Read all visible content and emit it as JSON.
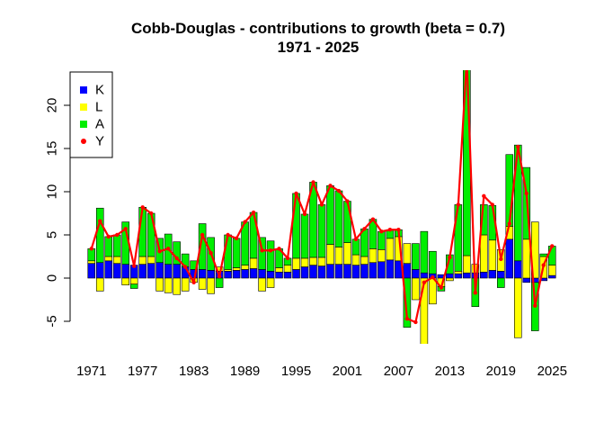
{
  "chart_data": {
    "type": "bar",
    "title": "Cobb-Douglas - contributions to growth (beta = 0.7)",
    "subtitle": "1971 - 2025",
    "xlabel": "",
    "ylabel": "",
    "years": [
      1971,
      1972,
      1973,
      1974,
      1975,
      1976,
      1977,
      1978,
      1979,
      1980,
      1981,
      1982,
      1983,
      1984,
      1985,
      1986,
      1987,
      1988,
      1989,
      1990,
      1991,
      1992,
      1993,
      1994,
      1995,
      1996,
      1997,
      1998,
      1999,
      2000,
      2001,
      2002,
      2003,
      2004,
      2005,
      2006,
      2007,
      2008,
      2009,
      2010,
      2011,
      2012,
      2013,
      2014,
      2015,
      2016,
      2017,
      2018,
      2019,
      2020,
      2021,
      2022,
      2023,
      2024,
      2025
    ],
    "x_tick_labels": [
      "1971",
      "1977",
      "1983",
      "1989",
      "1995",
      "2001",
      "2007",
      "2013",
      "2019",
      "2025"
    ],
    "y_ticks": [
      -5,
      0,
      5,
      10,
      15,
      20
    ],
    "ylim": [
      -8,
      24
    ],
    "stacked": true,
    "series": [
      {
        "name": "K",
        "color": "#0000ff",
        "values": [
          1.7,
          1.8,
          2.0,
          1.7,
          1.6,
          1.5,
          1.6,
          1.7,
          1.8,
          1.6,
          1.6,
          1.3,
          1.0,
          1.0,
          0.9,
          0.8,
          0.8,
          0.9,
          1.0,
          1.1,
          1.0,
          0.8,
          0.7,
          0.7,
          1.0,
          1.3,
          1.5,
          1.4,
          1.6,
          1.6,
          1.6,
          1.5,
          1.6,
          1.8,
          1.9,
          2.1,
          2.0,
          1.7,
          1.0,
          0.6,
          0.5,
          0.4,
          0.5,
          0.5,
          0.6,
          0.6,
          0.7,
          0.9,
          0.8,
          4.5,
          2.0,
          -0.5,
          -0.5,
          -0.3,
          0.3
        ]
      },
      {
        "name": "L",
        "color": "#ffff00",
        "values": [
          0.3,
          -1.5,
          0.5,
          0.8,
          -0.8,
          -0.7,
          0.9,
          0.8,
          -1.5,
          -1.7,
          -1.9,
          -1.5,
          -0.5,
          -1.3,
          -1.8,
          0.5,
          0.2,
          0.3,
          0.5,
          1.2,
          -1.5,
          -1.1,
          0.5,
          0.8,
          1.3,
          1.0,
          0.9,
          1.0,
          2.3,
          2.0,
          2.5,
          1.2,
          0.9,
          1.6,
          1.4,
          2.5,
          2.8,
          2.3,
          -2.5,
          -7.7,
          -3.0,
          -1.0,
          -0.3,
          0.3,
          2.0,
          1.0,
          4.3,
          3.5,
          2.5,
          1.5,
          -6.9,
          4.5,
          6.5,
          2.5,
          1.2
        ]
      },
      {
        "name": "A",
        "color": "#00ee00",
        "values": [
          1.4,
          6.3,
          2.3,
          2.5,
          4.9,
          -0.5,
          5.7,
          5.0,
          2.8,
          3.5,
          2.6,
          1.5,
          1.0,
          5.3,
          3.8,
          -1.1,
          4.0,
          3.4,
          5.0,
          5.3,
          3.7,
          3.5,
          2.2,
          0.8,
          7.5,
          5.1,
          8.7,
          6.1,
          6.8,
          6.5,
          4.8,
          1.8,
          3.2,
          3.4,
          2.1,
          1.0,
          0.8,
          -5.7,
          3.0,
          4.8,
          2.6,
          -0.5,
          2.2,
          7.7,
          22.8,
          -3.3,
          3.5,
          4.0,
          -1.1,
          8.3,
          13.4,
          8.3,
          -5.6,
          0.3,
          2.2
        ]
      },
      {
        "name": "Y",
        "color": "#ff0000",
        "type": "line",
        "values": [
          3.4,
          6.6,
          4.8,
          5.0,
          5.7,
          1.4,
          8.2,
          7.5,
          3.1,
          3.4,
          2.3,
          1.3,
          -0.5,
          5.0,
          2.9,
          0.2,
          5.0,
          4.6,
          6.5,
          7.6,
          3.2,
          3.2,
          3.4,
          2.3,
          9.8,
          7.4,
          11.1,
          8.5,
          10.7,
          10.1,
          8.9,
          4.5,
          5.7,
          6.8,
          5.4,
          5.6,
          5.6,
          -4.7,
          -5.1,
          -0.5,
          0.1,
          -1.1,
          2.4,
          8.5,
          25.4,
          -1.7,
          9.5,
          8.5,
          2.2,
          6.3,
          15.2,
          9.8,
          -3.2,
          1.5,
          3.7
        ]
      }
    ],
    "legend_position": "top-left",
    "legend_entries": [
      "K",
      "L",
      "A",
      "Y"
    ]
  }
}
